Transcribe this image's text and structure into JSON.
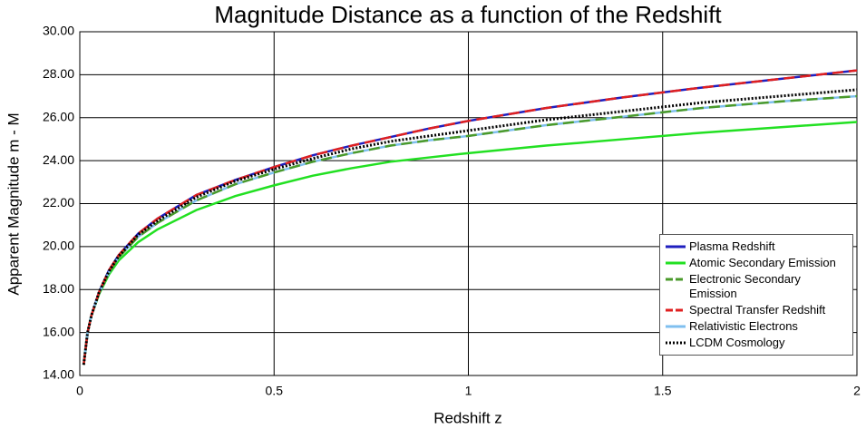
{
  "chart_data": {
    "type": "line",
    "title": "Magnitude Distance as a function of the Redshift",
    "x_label": "Redshift  z",
    "y_label": "Apparent Magnitude m - M",
    "x": [
      0.01,
      0.02,
      0.03,
      0.05,
      0.075,
      0.1,
      0.15,
      0.2,
      0.3,
      0.4,
      0.5,
      0.6,
      0.7,
      0.8,
      0.9,
      1,
      1.2,
      1.4,
      1.6,
      1.8,
      2
    ],
    "series": [
      {
        "name": "Plasma Redshift",
        "color": "#1f1fbf",
        "dash": "solid",
        "values": [
          14.5,
          16.0,
          16.8,
          17.9,
          18.9,
          19.6,
          20.6,
          21.3,
          22.4,
          23.1,
          23.7,
          24.25,
          24.7,
          25.1,
          25.5,
          25.85,
          26.45,
          26.95,
          27.4,
          27.8,
          28.2
        ]
      },
      {
        "name": "Atomic Secondary Emission",
        "color": "#22e022",
        "dash": "solid",
        "values": [
          14.5,
          16.0,
          16.8,
          17.8,
          18.7,
          19.35,
          20.2,
          20.8,
          21.7,
          22.35,
          22.85,
          23.3,
          23.65,
          23.95,
          24.15,
          24.35,
          24.7,
          25.0,
          25.3,
          25.55,
          25.8
        ]
      },
      {
        "name": "Electronic Secondary Emission",
        "color": "#4a9a2a",
        "dash": "dashed",
        "values": [
          14.5,
          16.0,
          16.8,
          17.85,
          18.8,
          19.5,
          20.45,
          21.1,
          22.15,
          22.9,
          23.45,
          23.95,
          24.35,
          24.7,
          24.95,
          25.15,
          25.65,
          26.05,
          26.45,
          26.75,
          27.0
        ]
      },
      {
        "name": "Spectral Transfer Redshift",
        "color": "#e02020",
        "dash": "dashed",
        "values": [
          14.5,
          16.0,
          16.8,
          17.9,
          18.9,
          19.6,
          20.6,
          21.3,
          22.4,
          23.1,
          23.7,
          24.25,
          24.7,
          25.1,
          25.5,
          25.85,
          26.45,
          26.95,
          27.4,
          27.8,
          28.2
        ]
      },
      {
        "name": "Relativistic Electrons",
        "color": "#7fbfef",
        "dash": "solid",
        "values": [
          14.5,
          16.0,
          16.8,
          17.85,
          18.8,
          19.5,
          20.45,
          21.1,
          22.15,
          22.9,
          23.45,
          23.95,
          24.35,
          24.7,
          24.95,
          25.15,
          25.65,
          26.05,
          26.45,
          26.75,
          27.0
        ]
      },
      {
        "name": "LCDM Cosmology",
        "color": "#000000",
        "dash": "dotted",
        "values": [
          14.5,
          16.0,
          16.8,
          17.9,
          18.85,
          19.55,
          20.55,
          21.2,
          22.3,
          23.05,
          23.6,
          24.1,
          24.55,
          24.9,
          25.15,
          25.4,
          25.9,
          26.3,
          26.7,
          27.0,
          27.3
        ]
      }
    ],
    "xlim": [
      0,
      2
    ],
    "ylim": [
      14,
      30
    ],
    "xticks": [
      0,
      0.5,
      1,
      1.5,
      2
    ],
    "yticks": [
      {
        "value": 14,
        "label": "14.00"
      },
      {
        "value": 16,
        "label": "16.00"
      },
      {
        "value": 18,
        "label": "18.00"
      },
      {
        "value": 20,
        "label": "20.00"
      },
      {
        "value": 22,
        "label": "22.00"
      },
      {
        "value": 24,
        "label": "24.00"
      },
      {
        "value": 26,
        "label": "26.00"
      },
      {
        "value": 28,
        "label": "28.00"
      },
      {
        "value": 30,
        "label": "30.00"
      }
    ],
    "grid": true,
    "legend": "lower right"
  }
}
